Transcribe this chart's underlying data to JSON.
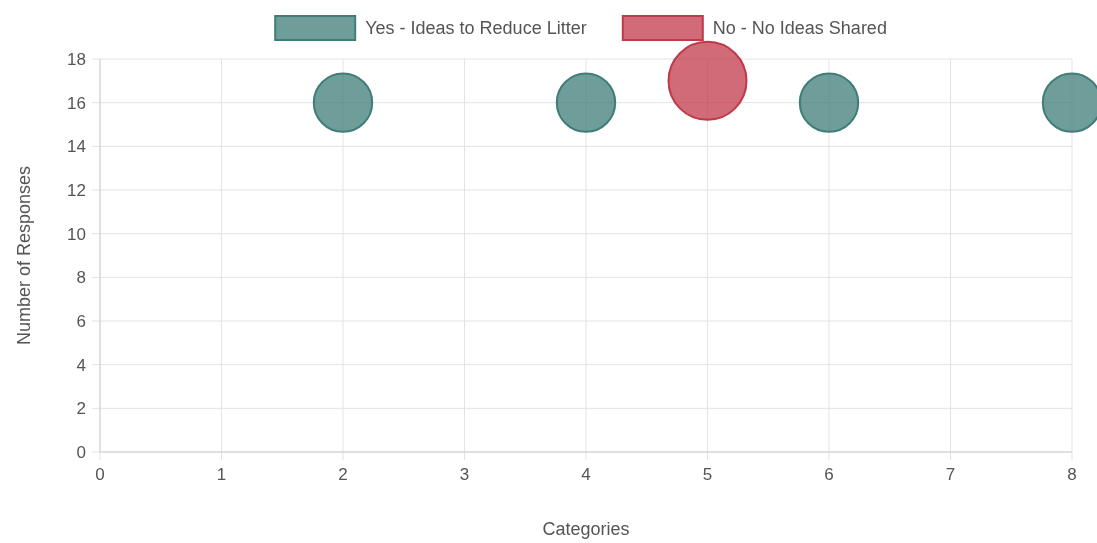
{
  "chart_data": {
    "type": "bubble",
    "xlabel": "Categories",
    "ylabel": "Number of Responses",
    "xlim": [
      0,
      8
    ],
    "xticks": [
      0,
      1,
      2,
      3,
      4,
      5,
      6,
      7,
      8
    ],
    "ylim": [
      0,
      18
    ],
    "yticks": [
      0,
      2,
      4,
      6,
      8,
      10,
      12,
      14,
      16,
      18
    ],
    "grid": true,
    "legend": "top",
    "series": [
      {
        "name": "Yes - Ideas to Reduce Litter",
        "color": "#3f7d78",
        "x": [
          2,
          4,
          6,
          8
        ],
        "values": [
          16,
          16,
          16,
          16
        ],
        "sizes": [
          0.56,
          0.56,
          0.56,
          0.56
        ]
      },
      {
        "name": "No - No Ideas Shared",
        "color": "#c0394a",
        "x": [
          5
        ],
        "values": [
          17
        ],
        "sizes": [
          1
        ]
      }
    ]
  }
}
